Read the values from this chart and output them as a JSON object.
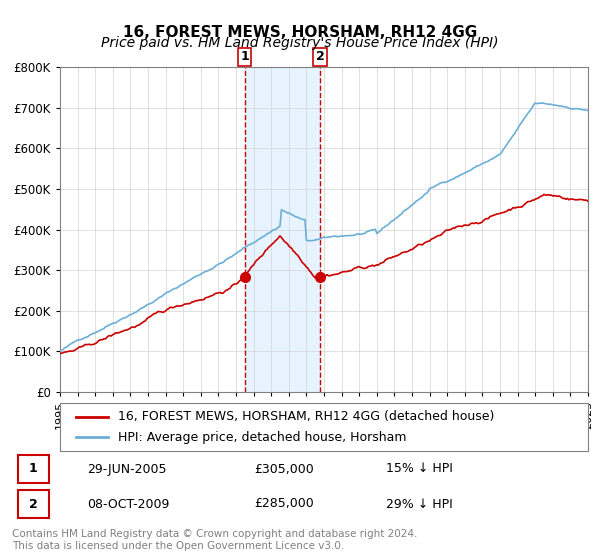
{
  "title": "16, FOREST MEWS, HORSHAM, RH12 4GG",
  "subtitle": "Price paid vs. HM Land Registry's House Price Index (HPI)",
  "xlabel": "",
  "ylabel": "",
  "ylim": [
    0,
    800000
  ],
  "yticks": [
    0,
    100000,
    200000,
    300000,
    400000,
    500000,
    600000,
    700000,
    800000
  ],
  "ytick_labels": [
    "£0",
    "£100K",
    "£200K",
    "£300K",
    "£400K",
    "£500K",
    "£600K",
    "£700K",
    "£800K"
  ],
  "hpi_color": "#6baed6",
  "price_color": "#cc0000",
  "marker_color": "#cc0000",
  "shading_color": "#ddeeff",
  "transaction1_date_num": 2005.49,
  "transaction2_date_num": 2009.77,
  "transaction1_price": 305000,
  "transaction2_price": 285000,
  "legend_label_price": "16, FOREST MEWS, HORSHAM, RH12 4GG (detached house)",
  "legend_label_hpi": "HPI: Average price, detached house, Horsham",
  "table_rows": [
    {
      "num": "1",
      "date": "29-JUN-2005",
      "price": "£305,000",
      "pct": "15% ↓ HPI"
    },
    {
      "num": "2",
      "date": "08-OCT-2009",
      "price": "£285,000",
      "pct": "29% ↓ HPI"
    }
  ],
  "footnote": "Contains HM Land Registry data © Crown copyright and database right 2024.\nThis data is licensed under the Open Government Licence v3.0.",
  "title_fontsize": 11,
  "subtitle_fontsize": 10,
  "tick_fontsize": 8.5,
  "legend_fontsize": 9,
  "table_fontsize": 9,
  "footnote_fontsize": 7.5
}
